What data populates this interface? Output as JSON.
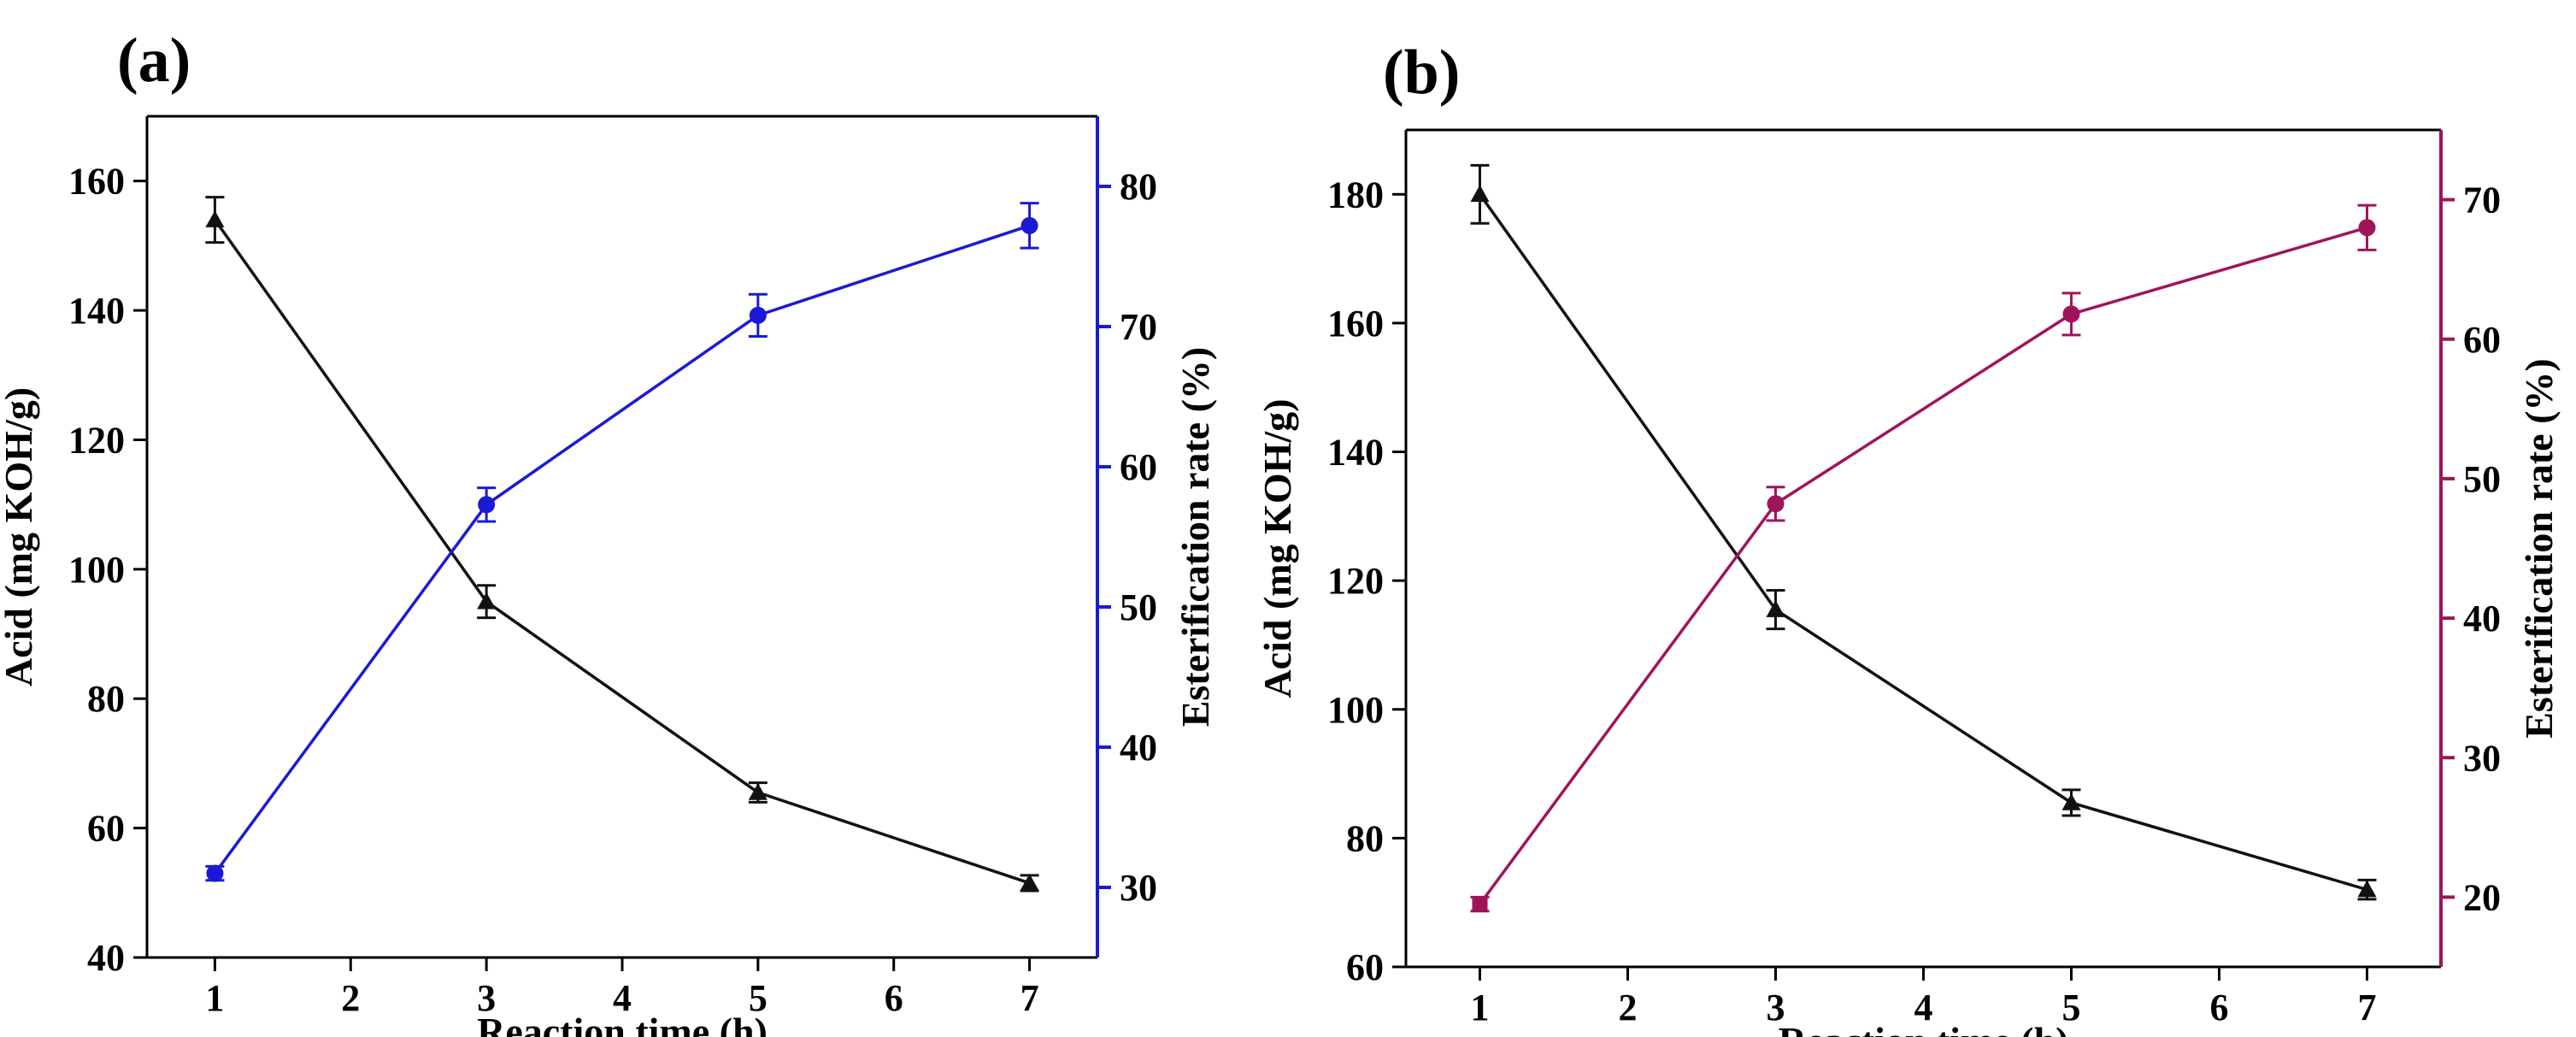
{
  "chart_data": [
    {
      "panel_label": "(a)",
      "type": "line",
      "title": "",
      "xlabel": "Reaction time (h)",
      "ylabel_left": "Acid (mg KOH/g)",
      "ylabel_right": "Esterification rate (%)",
      "xlim": [
        0.5,
        7.5
      ],
      "x_ticks": [
        1,
        2,
        3,
        4,
        5,
        6,
        7
      ],
      "ylim_left": [
        40,
        170
      ],
      "y_ticks_left": [
        40,
        60,
        80,
        100,
        120,
        140,
        160
      ],
      "ylim_right": [
        25,
        85
      ],
      "y_ticks_right": [
        30,
        40,
        50,
        60,
        70,
        80
      ],
      "right_axis_color": "#1a1ad6",
      "grid": false,
      "series": [
        {
          "name": "Acid value",
          "axis": "left",
          "marker": "triangle",
          "color": "#111111",
          "x": [
            1,
            3,
            5,
            7
          ],
          "values": [
            154,
            95,
            65.5,
            51.5
          ],
          "errors": [
            3.5,
            2.5,
            1.5,
            1.2
          ]
        },
        {
          "name": "Esterification rate",
          "axis": "right",
          "marker": "circle",
          "color": "#1a1ad6",
          "x": [
            1,
            3,
            5,
            7
          ],
          "values": [
            31,
            57.3,
            70.8,
            77.2
          ],
          "errors": [
            0.5,
            1.2,
            1.5,
            1.6
          ]
        }
      ]
    },
    {
      "panel_label": "(b)",
      "type": "line",
      "title": "",
      "xlabel": "Reaction time (h)",
      "ylabel_left": "Acid (mg KOH/g)",
      "ylabel_right": "Esterification rate (%)",
      "xlim": [
        0.5,
        7.5
      ],
      "x_ticks": [
        1,
        2,
        3,
        4,
        5,
        6,
        7
      ],
      "ylim_left": [
        60,
        190
      ],
      "y_ticks_left": [
        60,
        80,
        100,
        120,
        140,
        160,
        180
      ],
      "ylim_right": [
        15,
        75
      ],
      "y_ticks_right": [
        20,
        30,
        40,
        50,
        60,
        70
      ],
      "right_axis_color": "#a0145a",
      "grid": false,
      "series": [
        {
          "name": "Acid value",
          "axis": "left",
          "marker": "triangle",
          "color": "#111111",
          "x": [
            1,
            3,
            5,
            7
          ],
          "values": [
            180,
            115.5,
            85.5,
            72
          ],
          "errors": [
            4.5,
            3,
            2,
            1.5
          ]
        },
        {
          "name": "Esterification rate",
          "axis": "right",
          "marker": "circle",
          "color": "#a0145a",
          "x": [
            1,
            3,
            5,
            7
          ],
          "values": [
            19.5,
            48.2,
            61.8,
            68
          ],
          "errors": [
            0.5,
            1.2,
            1.5,
            1.6
          ]
        }
      ]
    }
  ]
}
